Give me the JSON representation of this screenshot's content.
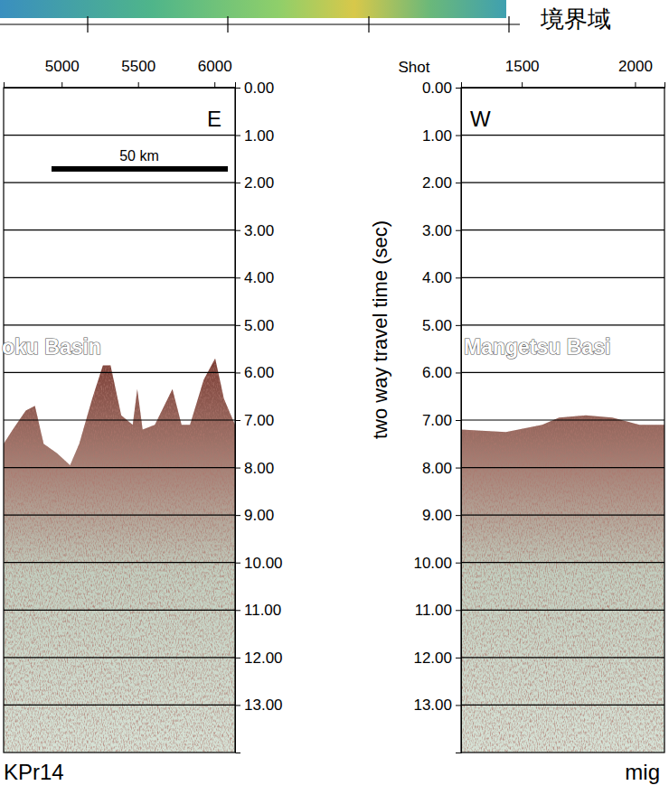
{
  "chart_data": [
    {
      "type": "area",
      "xlim": [
        4620,
        6135
      ],
      "xticks": [
        5000,
        5500,
        6000
      ],
      "ylim": [
        0,
        14
      ],
      "yticks": [
        {
          "value": 0,
          "label": "0.00"
        },
        {
          "value": 1,
          "label": "1.00"
        },
        {
          "value": 2,
          "label": "2.00"
        },
        {
          "value": 3,
          "label": "3.00"
        },
        {
          "value": 4,
          "label": "4.00"
        },
        {
          "value": 5,
          "label": "5.00"
        },
        {
          "value": 6,
          "label": "6.00"
        },
        {
          "value": 7,
          "label": "7.00"
        },
        {
          "value": 8,
          "label": "8.00"
        },
        {
          "value": 9,
          "label": "9.00"
        },
        {
          "value": 10,
          "label": "10.00"
        },
        {
          "value": 11,
          "label": "11.00"
        },
        {
          "value": 12,
          "label": "12.00"
        },
        {
          "value": 13,
          "label": "13.00"
        }
      ],
      "grid": true,
      "x": [
        4620,
        4680,
        4765,
        4825,
        4882,
        4970,
        5055,
        5115,
        5200,
        5270,
        5320,
        5390,
        5465,
        5495,
        5530,
        5610,
        5725,
        5785,
        5840,
        5930,
        6005,
        6062,
        6135
      ],
      "series": [
        {
          "color": "#7a3a32",
          "values": [
            7.5,
            7.2,
            6.8,
            6.7,
            7.5,
            7.7,
            7.95,
            7.5,
            6.55,
            5.85,
            5.85,
            6.9,
            7.1,
            6.35,
            7.2,
            7.1,
            6.35,
            7.1,
            7.1,
            6.15,
            5.7,
            6.55,
            7.1
          ]
        }
      ],
      "annotations": [
        "oku Basin",
        "E",
        "50 km",
        "KPr14"
      ]
    },
    {
      "type": "area",
      "xlabel": "Shot",
      "ylabel": "two way travel time (sec)",
      "xlim": [
        1232,
        2130
      ],
      "xticks": [
        1500,
        2000
      ],
      "ylim": [
        0,
        14
      ],
      "yticks": [
        {
          "value": 0,
          "label": "0.00"
        },
        {
          "value": 1,
          "label": "1.00"
        },
        {
          "value": 2,
          "label": "2.00"
        },
        {
          "value": 3,
          "label": "3.00"
        },
        {
          "value": 4,
          "label": "4.00"
        },
        {
          "value": 5,
          "label": "5.00"
        },
        {
          "value": 6,
          "label": "6.00"
        },
        {
          "value": 7,
          "label": "7.00"
        },
        {
          "value": 8,
          "label": "8.00"
        },
        {
          "value": 9,
          "label": "9.00"
        },
        {
          "value": 10,
          "label": "10.00"
        },
        {
          "value": 11,
          "label": "11.00"
        },
        {
          "value": 12,
          "label": "12.00"
        },
        {
          "value": 13,
          "label": "13.00"
        }
      ],
      "grid": true,
      "x": [
        1232,
        1430,
        1590,
        1665,
        1783,
        1900,
        2020,
        2130
      ],
      "series": [
        {
          "color": "#7a3a32",
          "values": [
            7.2,
            7.25,
            7.1,
            6.95,
            6.9,
            6.95,
            7.1,
            7.1
          ]
        }
      ],
      "annotations": [
        "Mangetsu Basi",
        "W",
        "mig",
        "境界域"
      ]
    }
  ]
}
